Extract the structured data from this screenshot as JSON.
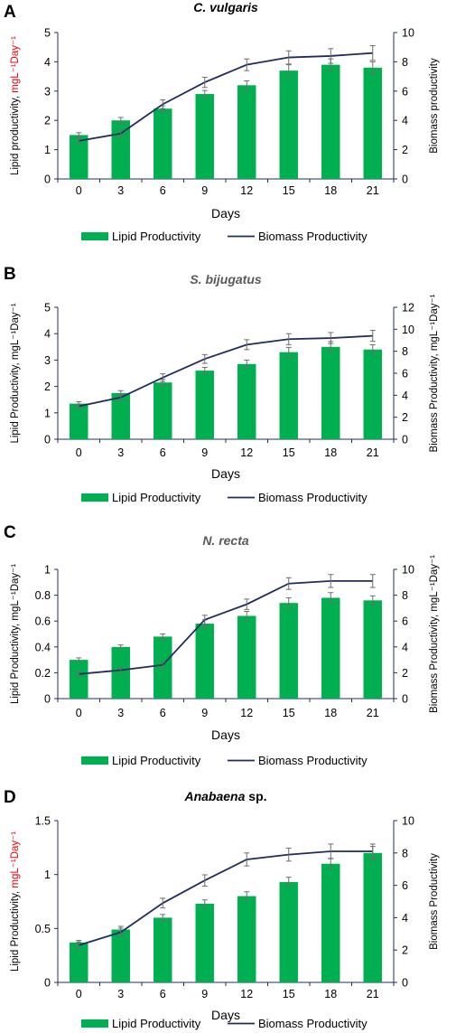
{
  "colors": {
    "bar": "#00b050",
    "line": "#1f2d5c",
    "axis": "#1f2d5c",
    "error": "#6d6d6d",
    "highlight_red": "#e8000b",
    "grey_text": "#595959"
  },
  "chart_data": [
    {
      "panel": "A",
      "type": "bar",
      "title": "C. vulgaris",
      "title_color": "#000000",
      "categories": [
        "0",
        "3",
        "6",
        "9",
        "12",
        "15",
        "18",
        "21"
      ],
      "xlabel": "Days",
      "ylabel_left": {
        "main": "Lipid productivity, ",
        "unit": "mgL⁻¹Day⁻¹",
        "unit_color": "#e8000b"
      },
      "ylabel_right": {
        "main": "Biomass productivity",
        "unit": ""
      },
      "ylim_left": [
        0,
        5
      ],
      "yticks_left": [
        "0",
        "1",
        "2",
        "3",
        "4",
        "5"
      ],
      "ylim_right": [
        0,
        10
      ],
      "yticks_right": [
        "0",
        "2",
        "4",
        "6",
        "8",
        "10"
      ],
      "series": [
        {
          "name": "Lipid Productivity",
          "kind": "bar",
          "axis": "left",
          "values": [
            1.5,
            2.0,
            2.4,
            2.9,
            3.2,
            3.7,
            3.9,
            3.8
          ],
          "errors": [
            0.08,
            0.1,
            0.1,
            0.12,
            0.15,
            0.2,
            0.2,
            0.2
          ]
        },
        {
          "name": "Biomass Productivity",
          "kind": "line",
          "axis": "right",
          "values": [
            2.6,
            3.1,
            5.1,
            6.6,
            7.8,
            8.3,
            8.4,
            8.6
          ],
          "errors": [
            0.2,
            0.25,
            0.3,
            0.35,
            0.4,
            0.45,
            0.5,
            0.5
          ]
        }
      ],
      "legend": [
        "Lipid Productivity",
        "Biomass Productivity"
      ]
    },
    {
      "panel": "B",
      "type": "bar",
      "title": "S. bijugatus",
      "title_color": "#595959",
      "categories": [
        "0",
        "3",
        "6",
        "9",
        "12",
        "15",
        "18",
        "21"
      ],
      "xlabel": "Days",
      "ylabel_left": {
        "main": "Lipid Productivity, mgL⁻¹Day⁻¹",
        "unit": "",
        "unit_color": "#000000"
      },
      "ylabel_right": {
        "main": "Biomass Productivity, mgL⁻¹Day⁻¹",
        "unit": ""
      },
      "ylim_left": [
        0,
        5
      ],
      "yticks_left": [
        "0",
        "1",
        "2",
        "3",
        "4",
        "5"
      ],
      "ylim_right": [
        0,
        12
      ],
      "yticks_right": [
        "0",
        "2",
        "4",
        "6",
        "8",
        "10",
        "12"
      ],
      "series": [
        {
          "name": "Lipid Productivity",
          "kind": "bar",
          "axis": "left",
          "values": [
            1.35,
            1.75,
            2.15,
            2.6,
            2.85,
            3.3,
            3.5,
            3.4
          ],
          "errors": [
            0.07,
            0.09,
            0.12,
            0.12,
            0.15,
            0.18,
            0.2,
            0.18
          ]
        },
        {
          "name": "Biomass Productivity",
          "kind": "line",
          "axis": "right",
          "values": [
            3.0,
            3.8,
            5.6,
            7.3,
            8.6,
            9.1,
            9.2,
            9.4
          ],
          "errors": [
            0.2,
            0.25,
            0.35,
            0.4,
            0.45,
            0.5,
            0.5,
            0.5
          ]
        }
      ],
      "legend": [
        "Lipid Productivity",
        "Biomass Productivity"
      ]
    },
    {
      "panel": "C",
      "type": "bar",
      "title": "N. recta",
      "title_color": "#595959",
      "categories": [
        "0",
        "3",
        "6",
        "9",
        "12",
        "15",
        "18",
        "21"
      ],
      "xlabel": "Days",
      "ylabel_left": {
        "main": "Lipid Productivity, mgL⁻¹Day⁻¹",
        "unit": "",
        "unit_color": "#000000"
      },
      "ylabel_right": {
        "main": "Biomass Productivity, mgL⁻¹Day⁻¹",
        "unit": ""
      },
      "ylim_left": [
        0,
        1
      ],
      "yticks_left": [
        "0",
        "0.2",
        "0.4",
        "0.6",
        "0.8",
        "1"
      ],
      "ylim_right": [
        0,
        10
      ],
      "yticks_right": [
        "0",
        "2",
        "4",
        "6",
        "8",
        "10"
      ],
      "series": [
        {
          "name": "Lipid Productivity",
          "kind": "bar",
          "axis": "left",
          "values": [
            0.3,
            0.4,
            0.48,
            0.58,
            0.64,
            0.74,
            0.78,
            0.76
          ],
          "errors": [
            0.015,
            0.015,
            0.02,
            0.03,
            0.035,
            0.04,
            0.04,
            0.035
          ]
        },
        {
          "name": "Biomass Productivity",
          "kind": "line",
          "axis": "right",
          "values": [
            1.9,
            2.2,
            2.6,
            6.1,
            7.3,
            8.9,
            9.1,
            9.1
          ],
          "errors": [
            0.15,
            0.2,
            0.2,
            0.35,
            0.4,
            0.45,
            0.5,
            0.5
          ]
        }
      ],
      "legend": [
        "Lipid Productivity",
        "Biomass Productivity"
      ]
    },
    {
      "panel": "D",
      "type": "bar",
      "title": "Anabaena sp.",
      "title_italic_part": "Anabaena",
      "title_rest": " sp.",
      "title_color": "#000000",
      "categories": [
        "0",
        "3",
        "6",
        "9",
        "12",
        "15",
        "18",
        "21"
      ],
      "xlabel": "Days",
      "ylabel_left": {
        "main": "Lipid Productivity, ",
        "unit": "mgL⁻¹Day⁻¹",
        "unit_color": "#e8000b"
      },
      "ylabel_right": {
        "main": "Biomass Productivity",
        "unit": ""
      },
      "ylim_left": [
        0,
        1.5
      ],
      "yticks_left": [
        "0",
        "0.5",
        "1",
        "1.5"
      ],
      "ylim_right": [
        0,
        10
      ],
      "yticks_right": [
        "0",
        "2",
        "4",
        "6",
        "8",
        "10"
      ],
      "series": [
        {
          "name": "Lipid Productivity",
          "kind": "bar",
          "axis": "left",
          "values": [
            0.37,
            0.49,
            0.6,
            0.73,
            0.8,
            0.93,
            1.1,
            1.2
          ],
          "errors": [
            0.02,
            0.03,
            0.03,
            0.035,
            0.04,
            0.045,
            0.05,
            0.06
          ]
        },
        {
          "name": "Biomass Productivity",
          "kind": "line",
          "axis": "right",
          "values": [
            2.3,
            3.1,
            4.9,
            6.3,
            7.6,
            7.9,
            8.1,
            8.1
          ],
          "errors": [
            0.2,
            0.25,
            0.3,
            0.35,
            0.4,
            0.4,
            0.45,
            0.45
          ]
        }
      ],
      "legend": [
        "Lipid Productivity",
        "Biomass Productivity"
      ]
    }
  ]
}
